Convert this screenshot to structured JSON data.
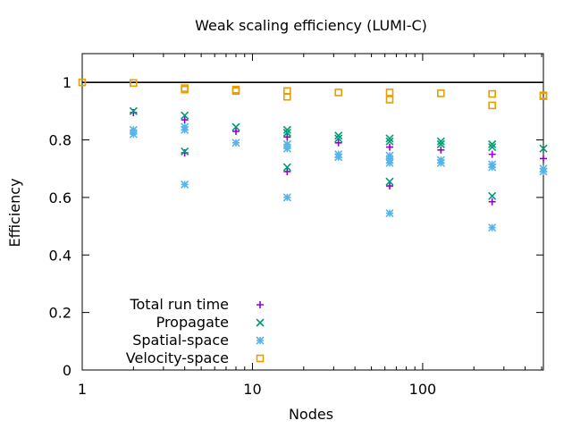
{
  "chart_data": {
    "type": "scatter",
    "title": "Weak scaling efficiency (LUMI-C)",
    "xlabel": "Nodes",
    "ylabel": "Efficiency",
    "xscale": "log",
    "xlim": [
      1,
      512
    ],
    "ylim": [
      0,
      1.1
    ],
    "grid": false,
    "legend_position": "bottom-left",
    "reference_line": {
      "y": 1,
      "color": "#000000"
    },
    "x_ticks": [
      {
        "value": 1,
        "label": "1"
      },
      {
        "value": 10,
        "label": "10"
      },
      {
        "value": 100,
        "label": "100"
      }
    ],
    "y_ticks": [
      {
        "value": 0,
        "label": "0"
      },
      {
        "value": 0.2,
        "label": "0.2"
      },
      {
        "value": 0.4,
        "label": "0.4"
      },
      {
        "value": 0.6,
        "label": "0.6"
      },
      {
        "value": 0.8,
        "label": "0.8"
      },
      {
        "value": 1,
        "label": "1"
      }
    ],
    "series": [
      {
        "name": "Total run time",
        "marker": "plus",
        "color": "#9400d3",
        "points": [
          [
            2,
            0.895
          ],
          [
            4,
            0.87
          ],
          [
            4,
            0.755
          ],
          [
            8,
            0.83
          ],
          [
            16,
            0.81
          ],
          [
            16,
            0.69
          ],
          [
            32,
            0.79
          ],
          [
            64,
            0.775
          ],
          [
            64,
            0.64
          ],
          [
            128,
            0.765
          ],
          [
            256,
            0.75
          ],
          [
            256,
            0.585
          ],
          [
            512,
            0.735
          ]
        ]
      },
      {
        "name": "Propagate",
        "marker": "cross",
        "color": "#009e73",
        "points": [
          [
            2,
            0.9
          ],
          [
            4,
            0.885
          ],
          [
            4,
            0.76
          ],
          [
            8,
            0.845
          ],
          [
            16,
            0.835
          ],
          [
            16,
            0.825
          ],
          [
            16,
            0.705
          ],
          [
            32,
            0.815
          ],
          [
            32,
            0.805
          ],
          [
            64,
            0.805
          ],
          [
            64,
            0.795
          ],
          [
            64,
            0.655
          ],
          [
            128,
            0.795
          ],
          [
            128,
            0.785
          ],
          [
            256,
            0.785
          ],
          [
            256,
            0.775
          ],
          [
            256,
            0.605
          ],
          [
            512,
            0.77
          ]
        ]
      },
      {
        "name": "Spatial-space",
        "marker": "star",
        "color": "#56b4e9",
        "points": [
          [
            2,
            0.835
          ],
          [
            2,
            0.82
          ],
          [
            4,
            0.845
          ],
          [
            4,
            0.835
          ],
          [
            4,
            0.645
          ],
          [
            8,
            0.79
          ],
          [
            16,
            0.785
          ],
          [
            16,
            0.77
          ],
          [
            16,
            0.6
          ],
          [
            32,
            0.75
          ],
          [
            32,
            0.74
          ],
          [
            64,
            0.745
          ],
          [
            64,
            0.73
          ],
          [
            64,
            0.72
          ],
          [
            64,
            0.545
          ],
          [
            128,
            0.73
          ],
          [
            128,
            0.72
          ],
          [
            256,
            0.715
          ],
          [
            256,
            0.705
          ],
          [
            256,
            0.495
          ],
          [
            512,
            0.7
          ],
          [
            512,
            0.69
          ]
        ]
      },
      {
        "name": "Velocity-space",
        "marker": "square",
        "color": "#e69f00",
        "points": [
          [
            1,
            1.0
          ],
          [
            2,
            0.998
          ],
          [
            4,
            0.98
          ],
          [
            4,
            0.975
          ],
          [
            8,
            0.975
          ],
          [
            8,
            0.97
          ],
          [
            16,
            0.97
          ],
          [
            16,
            0.95
          ],
          [
            32,
            0.965
          ],
          [
            64,
            0.965
          ],
          [
            64,
            0.94
          ],
          [
            128,
            0.962
          ],
          [
            256,
            0.96
          ],
          [
            256,
            0.92
          ],
          [
            512,
            0.955
          ],
          [
            512,
            0.952
          ]
        ]
      }
    ]
  }
}
